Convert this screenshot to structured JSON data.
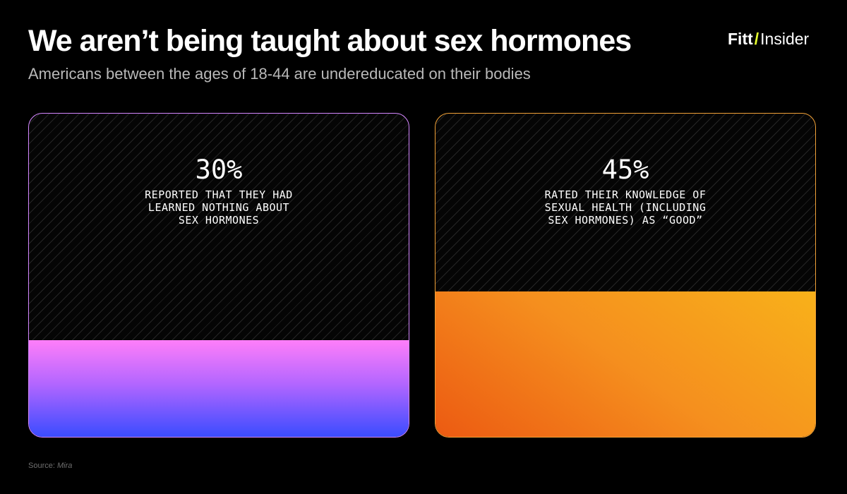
{
  "header": {
    "title": "We aren’t being taught about sex hormones",
    "subtitle": "Americans between the ages of 18-44 are undereducated on their bodies"
  },
  "logo": {
    "part1": "Fitt",
    "slash": "/",
    "part2": "Insider"
  },
  "chart_data": {
    "type": "bar",
    "categories": [
      "REPORTED THAT THEY HAD LEARNED NOTHING ABOUT SEX HORMONES",
      "RATED THEIR KNOWLEDGE OF SEXUAL HEALTH (INCLUDING SEX HORMONES) AS “GOOD”"
    ],
    "values": [
      30,
      45
    ],
    "ylim": [
      0,
      100
    ],
    "value_labels": [
      "30%",
      "45%"
    ],
    "descriptions": [
      "REPORTED THAT THEY HAD\nLEARNED NOTHING ABOUT\nSEX HORMONES",
      "RATED THEIR KNOWLEDGE OF\nSEXUAL HEALTH (INCLUDING\nSEX HORMONES) AS “GOOD”"
    ],
    "colors": {
      "card1_border": "#d487ff",
      "card1_fill_top": "#ff7ef9",
      "card1_fill_bottom": "#3a4cff",
      "card2_border": "#f0a036",
      "card2_fill_top": "#f8b11a",
      "card2_fill_bottom": "#ec5a12"
    }
  },
  "footer": {
    "source_label": "Source: ",
    "source_name": "Mira"
  }
}
